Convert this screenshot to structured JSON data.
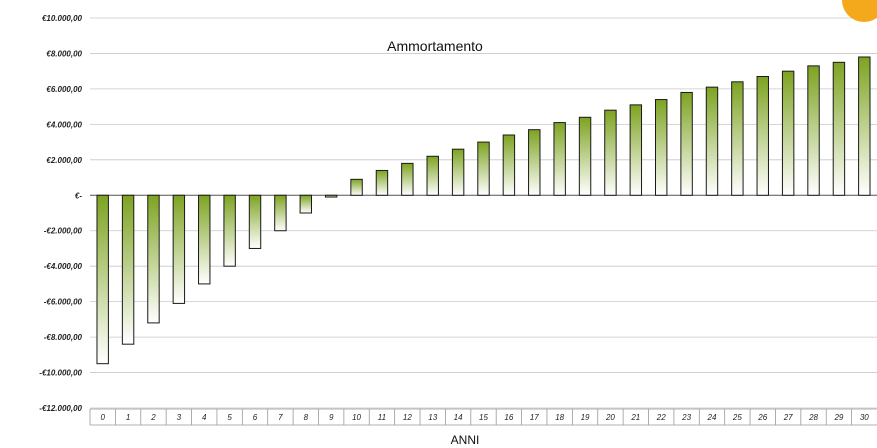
{
  "chart_data": {
    "type": "bar",
    "title": "Ammortamento",
    "xlabel": "ANNI",
    "ylabel": "",
    "ylim": [
      -12000,
      10000
    ],
    "categories": [
      "0",
      "1",
      "2",
      "3",
      "4",
      "5",
      "6",
      "7",
      "8",
      "9",
      "10",
      "11",
      "12",
      "13",
      "14",
      "15",
      "16",
      "17",
      "18",
      "19",
      "20",
      "21",
      "22",
      "23",
      "24",
      "25",
      "26",
      "27",
      "28",
      "29",
      "30"
    ],
    "values": [
      -9500,
      -8400,
      -7200,
      -6100,
      -5000,
      -4000,
      -3000,
      -2000,
      -1000,
      -100,
      900,
      1400,
      1800,
      2200,
      2600,
      3000,
      3400,
      3700,
      4100,
      4400,
      4800,
      5100,
      5400,
      5800,
      6100,
      6400,
      6700,
      7000,
      7300,
      7500,
      7800
    ],
    "y_ticks": [
      10000,
      8000,
      6000,
      4000,
      2000,
      0,
      -2000,
      -4000,
      -6000,
      -8000,
      -10000,
      -12000
    ],
    "y_tick_labels": [
      "€10.000,00",
      "€8.000,00",
      "€6.000,00",
      "€4.000,00",
      "€2.000,00",
      "€-",
      "-€2.000,00",
      "-€4.000,00",
      "-€6.000,00",
      "-€8.000,00",
      "-€10.000,00",
      "-€12.000,00"
    ],
    "grid": true,
    "legend": "none",
    "colors": {
      "bar_top": "#7da321",
      "bar_bottom": "#ffffff",
      "bar_stroke": "#1a1a1a",
      "grid": "#c8c8c8",
      "badge": "#f3a91b"
    }
  }
}
